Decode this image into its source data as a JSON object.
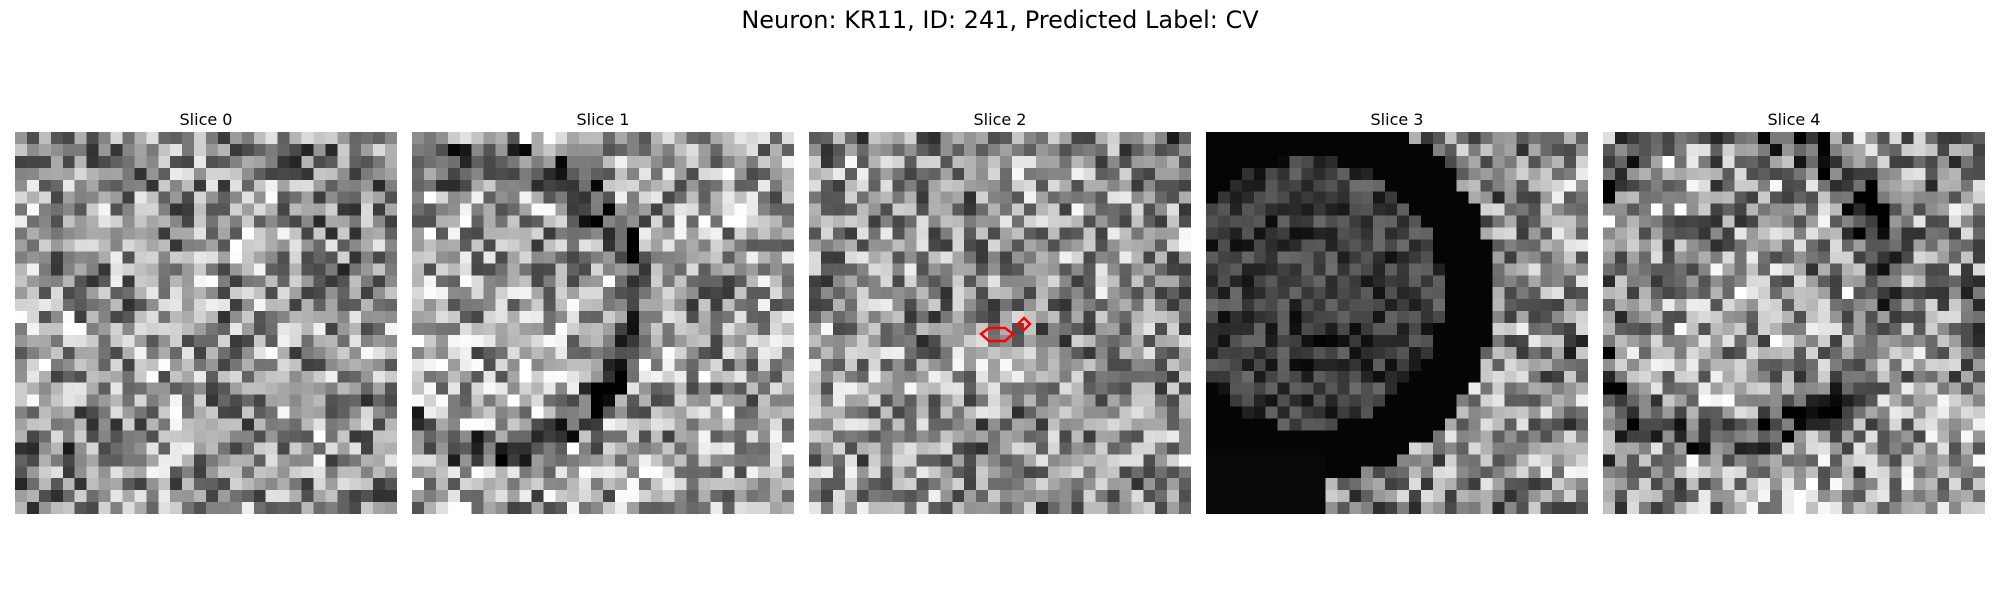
{
  "title": "Neuron: KR11, ID: 241, Predicted Label: CV",
  "overlay_color": "#ff0000",
  "panels": [
    {
      "label": "Slice 0",
      "tone": "mid-gray mottled texture",
      "has_overlay": false
    },
    {
      "label": "Slice 1",
      "tone": "lighter mottled texture with dark curved band",
      "has_overlay": false
    },
    {
      "label": "Slice 2",
      "tone": "grainy texture",
      "has_overlay": true
    },
    {
      "label": "Slice 3",
      "tone": "large dark circular structure on left",
      "has_overlay": false
    },
    {
      "label": "Slice 4",
      "tone": "mottled texture with dark arc",
      "has_overlay": false
    }
  ]
}
